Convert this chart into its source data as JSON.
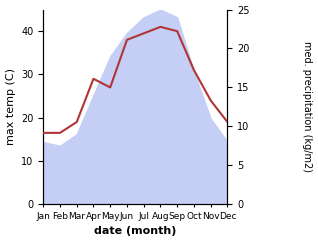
{
  "months": [
    "Jan",
    "Feb",
    "Mar",
    "Apr",
    "May",
    "Jun",
    "Jul",
    "Aug",
    "Sep",
    "Oct",
    "Nov",
    "Dec"
  ],
  "month_indices": [
    1,
    2,
    3,
    4,
    5,
    6,
    7,
    8,
    9,
    10,
    11,
    12
  ],
  "temperature": [
    16.5,
    16.5,
    19,
    29,
    27,
    38,
    39.5,
    41,
    40,
    31,
    24,
    19
  ],
  "precipitation": [
    8,
    7.5,
    9,
    14,
    19,
    22,
    24,
    25,
    24,
    17,
    11,
    8
  ],
  "temp_color": "#b03535",
  "precip_fill_color": "#c5cff5",
  "precip_edge_color": "#c5cff5",
  "left_ylabel": "max temp (C)",
  "right_ylabel": "med. precipitation (kg/m2)",
  "xlabel": "date (month)",
  "left_ylim": [
    0,
    45
  ],
  "right_ylim": [
    0,
    25
  ],
  "left_yticks": [
    0,
    10,
    20,
    30,
    40
  ],
  "right_yticks": [
    0,
    5,
    10,
    15,
    20,
    25
  ],
  "bg_color": "#ffffff"
}
